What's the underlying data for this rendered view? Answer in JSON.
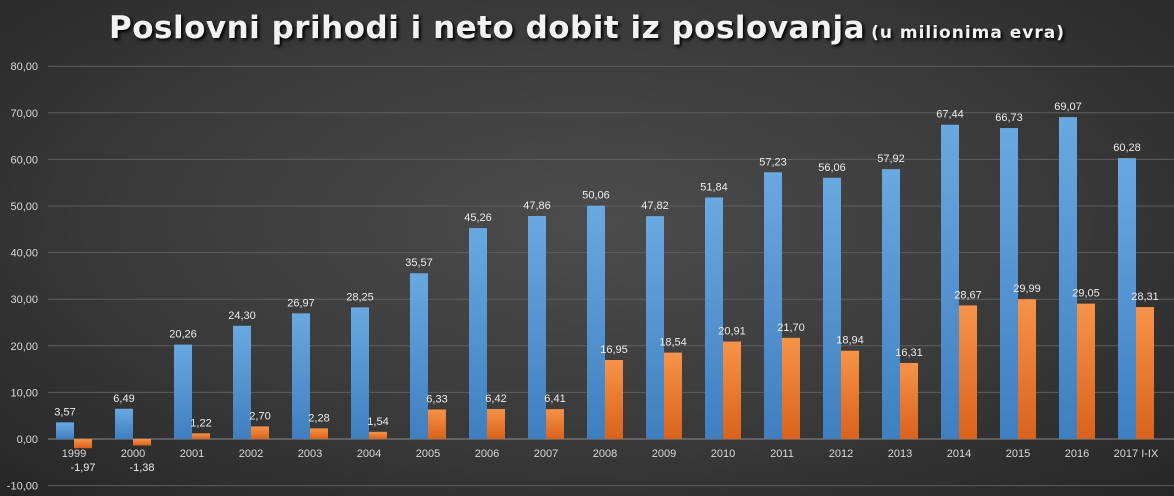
{
  "chart_data": {
    "type": "bar",
    "title": "Poslovni prihodi i neto dobit iz poslovanja",
    "subtitle": "(u milionima evra)",
    "categories": [
      "1999",
      "2000",
      "2001",
      "2002",
      "2003",
      "2004",
      "2005",
      "2006",
      "2007",
      "2008",
      "2009",
      "2010",
      "2011",
      "2012",
      "2013",
      "2014",
      "2015",
      "2016",
      "2017 I-IX"
    ],
    "series": [
      {
        "color": "#5b9bd5",
        "values": [
          3.57,
          6.49,
          20.26,
          24.3,
          26.97,
          28.25,
          35.57,
          45.26,
          47.86,
          50.06,
          47.82,
          51.84,
          57.23,
          56.06,
          57.92,
          67.44,
          66.73,
          69.07,
          60.28
        ],
        "labels": [
          "3,57",
          "6,49",
          "20,26",
          "24,30",
          "26,97",
          "28,25",
          "35,57",
          "45,26",
          "47,86",
          "50,06",
          "47,82",
          "51,84",
          "57,23",
          "56,06",
          "57,92",
          "67,44",
          "66,73",
          "69,07",
          "60,28"
        ]
      },
      {
        "color": "#ed7d31",
        "values": [
          -1.97,
          -1.38,
          1.22,
          2.7,
          2.28,
          1.54,
          6.33,
          6.42,
          6.41,
          16.95,
          18.54,
          20.91,
          21.7,
          18.94,
          16.31,
          28.67,
          29.99,
          29.05,
          28.31
        ],
        "labels": [
          "-1,97",
          "-1,38",
          "1,22",
          "2,70",
          "2,28",
          "1,54",
          "6,33",
          "6,42",
          "6,41",
          "16,95",
          "18,54",
          "20,91",
          "21,70",
          "18,94",
          "16,31",
          "28,67",
          "29,99",
          "29,05",
          "28,31"
        ]
      }
    ],
    "yticks": [
      -10,
      0,
      10,
      20,
      30,
      40,
      50,
      60,
      70,
      80
    ],
    "ytick_labels": [
      "-10,00",
      "0,00",
      "10,00",
      "20,00",
      "30,00",
      "40,00",
      "50,00",
      "60,00",
      "70,00",
      "80,00"
    ],
    "ylim": [
      -10,
      80
    ],
    "grid": true,
    "legend": "none"
  }
}
